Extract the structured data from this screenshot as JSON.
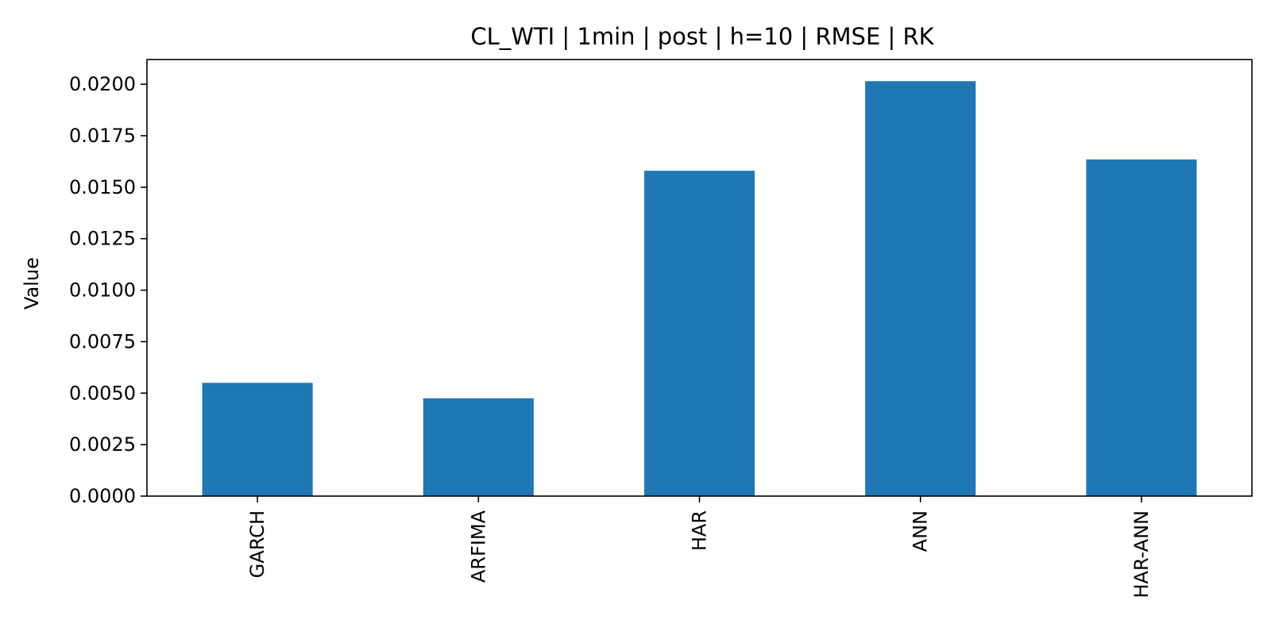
{
  "chart_data": {
    "type": "bar",
    "title": "CL_WTI | 1min | post | h=10 | RMSE | RK",
    "xlabel": "",
    "ylabel": "Value",
    "categories": [
      "GARCH",
      "ARFIMA",
      "HAR",
      "ANN",
      "HAR-ANN"
    ],
    "values": [
      0.0055,
      0.00475,
      0.0158,
      0.02015,
      0.01635
    ],
    "ylim": [
      0,
      0.0212
    ],
    "yticks": [
      0.0,
      0.0025,
      0.005,
      0.0075,
      0.01,
      0.0125,
      0.015,
      0.0175,
      0.02
    ],
    "ytick_labels": [
      "0.0000",
      "0.0025",
      "0.0050",
      "0.0075",
      "0.0100",
      "0.0125",
      "0.0150",
      "0.0175",
      "0.0200"
    ],
    "grid": false,
    "legend": "none",
    "bar_color": "#1f77b4"
  }
}
